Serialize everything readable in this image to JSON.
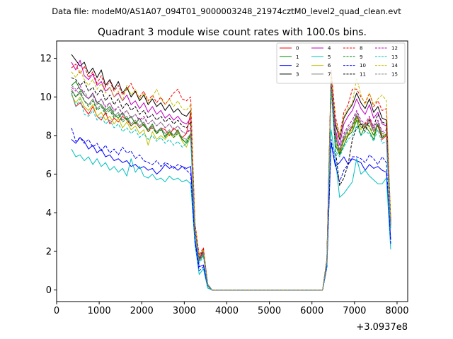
{
  "chart_data": {
    "type": "line",
    "suptitle": "Data file: modeM0/AS1A07_094T01_9000003248_21974cztM0_level2_quad_clean.evt",
    "title": "Quadrant 3 module wise count rates with 100.0s bins.",
    "xlabel": "",
    "ylabel": "",
    "x_offset_label": "+3.0937e8",
    "xlim": [
      0,
      8250
    ],
    "ylim": [
      -0.6,
      12.9
    ],
    "x_ticks": [
      0,
      1000,
      2000,
      3000,
      4000,
      5000,
      6000,
      7000,
      8000
    ],
    "x_tick_labels": [
      "0",
      "1000",
      "2000",
      "3000",
      "4000",
      "5000",
      "6000",
      "7000",
      "8000"
    ],
    "y_ticks": [
      0,
      2,
      4,
      6,
      8,
      10,
      12
    ],
    "y_tick_labels": [
      "0",
      "2",
      "4",
      "6",
      "8",
      "10",
      "12"
    ],
    "legend_position": "top-right",
    "x": [
      350,
      450,
      550,
      650,
      750,
      850,
      950,
      1050,
      1150,
      1250,
      1350,
      1450,
      1550,
      1650,
      1750,
      1850,
      1950,
      2050,
      2150,
      2250,
      2350,
      2450,
      2550,
      2650,
      2750,
      2850,
      2950,
      3050,
      3150,
      3250,
      3350,
      3450,
      3550,
      3650,
      3750,
      6250,
      6350,
      6450,
      6550,
      6650,
      6750,
      6850,
      6950,
      7050,
      7150,
      7250,
      7350,
      7450,
      7550,
      7650,
      7750,
      7850
    ],
    "series": [
      {
        "name": "0",
        "color": "#ff0000",
        "dash": false,
        "values": [
          10.2,
          9.5,
          9.7,
          9.4,
          9.1,
          9.5,
          9.0,
          8.8,
          9.2,
          8.6,
          8.9,
          8.7,
          9.0,
          8.8,
          8.5,
          8.7,
          8.4,
          8.6,
          8.2,
          8.5,
          8.1,
          8.4,
          8.3,
          8.0,
          8.4,
          8.2,
          7.9,
          8.1,
          9.2,
          3.2,
          1.6,
          2.0,
          0.3,
          0.0,
          0.0,
          0.0,
          1.5,
          11.0,
          8.2,
          7.0,
          7.8,
          8.0,
          8.5,
          9.0,
          8.6,
          8.4,
          8.9,
          8.2,
          8.5,
          7.8,
          8.0,
          3.3
        ]
      },
      {
        "name": "1",
        "color": "#008000",
        "dash": false,
        "values": [
          10.6,
          10.8,
          10.4,
          10.1,
          9.9,
          10.2,
          9.7,
          9.6,
          9.3,
          9.5,
          9.1,
          8.9,
          9.2,
          8.8,
          9.0,
          8.6,
          8.9,
          8.5,
          8.3,
          8.6,
          8.1,
          8.4,
          7.9,
          8.2,
          8.0,
          8.3,
          7.8,
          7.6,
          8.1,
          3.0,
          1.5,
          1.8,
          0.3,
          0.0,
          0.0,
          0.0,
          1.4,
          10.5,
          7.5,
          7.0,
          7.5,
          8.0,
          8.2,
          8.8,
          8.0,
          8.5,
          8.2,
          7.8,
          8.6,
          7.9,
          8.1,
          3.2
        ]
      },
      {
        "name": "2",
        "color": "#0000ff",
        "dash": false,
        "values": [
          7.8,
          7.6,
          7.9,
          7.7,
          7.3,
          7.5,
          7.1,
          7.3,
          6.9,
          7.0,
          6.7,
          6.8,
          6.6,
          6.7,
          6.4,
          6.5,
          6.3,
          6.4,
          6.2,
          6.3,
          6.0,
          6.2,
          6.5,
          6.3,
          6.4,
          6.2,
          6.4,
          6.3,
          6.4,
          2.6,
          1.2,
          1.3,
          0.2,
          0.0,
          0.0,
          0.0,
          1.2,
          7.6,
          6.4,
          6.6,
          6.9,
          6.5,
          6.8,
          6.7,
          6.6,
          6.2,
          6.5,
          6.3,
          6.4,
          6.2,
          6.1,
          2.6
        ]
      },
      {
        "name": "3",
        "color": "#000000",
        "dash": false,
        "values": [
          12.2,
          11.9,
          11.6,
          11.8,
          11.2,
          11.5,
          11.0,
          11.4,
          10.6,
          10.9,
          10.4,
          10.8,
          10.2,
          10.5,
          10.0,
          10.3,
          9.8,
          10.1,
          9.6,
          9.9,
          9.5,
          9.7,
          9.3,
          9.6,
          9.2,
          9.4,
          9.1,
          9.0,
          9.3,
          3.4,
          1.7,
          2.1,
          0.3,
          0.0,
          0.0,
          0.0,
          1.6,
          11.3,
          8.6,
          7.8,
          8.9,
          9.3,
          9.6,
          10.2,
          9.7,
          9.4,
          9.9,
          9.2,
          9.5,
          8.9,
          8.8,
          3.6
        ]
      },
      {
        "name": "4",
        "color": "#bf00bf",
        "dash": false,
        "values": [
          11.8,
          11.4,
          11.9,
          11.1,
          10.9,
          11.2,
          10.6,
          10.8,
          10.3,
          10.5,
          10.0,
          10.2,
          9.8,
          10.1,
          9.6,
          9.8,
          9.4,
          9.7,
          9.2,
          9.5,
          9.1,
          9.3,
          8.9,
          9.1,
          8.8,
          9.0,
          8.7,
          8.6,
          8.9,
          3.3,
          1.6,
          2.0,
          0.3,
          0.0,
          0.0,
          0.0,
          1.5,
          11.1,
          8.3,
          7.5,
          8.6,
          9.0,
          9.3,
          9.9,
          9.4,
          9.1,
          9.6,
          8.9,
          9.2,
          8.6,
          8.5,
          3.5
        ]
      },
      {
        "name": "5",
        "color": "#00bfbf",
        "dash": false,
        "values": [
          7.3,
          6.9,
          7.0,
          6.7,
          6.9,
          6.5,
          6.8,
          6.4,
          6.6,
          6.2,
          6.4,
          6.1,
          6.3,
          5.9,
          6.8,
          6.1,
          6.4,
          5.9,
          5.8,
          6.0,
          5.7,
          5.8,
          5.6,
          5.9,
          5.7,
          5.8,
          5.6,
          5.7,
          5.5,
          2.4,
          0.8,
          1.1,
          0.1,
          0.0,
          0.0,
          0.0,
          1.2,
          8.3,
          6.8,
          4.8,
          5.0,
          5.3,
          5.6,
          6.8,
          6.0,
          6.2,
          5.9,
          5.7,
          5.5,
          5.5,
          5.8,
          2.1
        ]
      },
      {
        "name": "6",
        "color": "#bfbf00",
        "dash": false,
        "values": [
          10.1,
          9.7,
          10.0,
          9.5,
          9.3,
          9.6,
          9.0,
          9.2,
          8.8,
          9.0,
          8.6,
          8.9,
          8.4,
          8.7,
          8.3,
          8.5,
          8.1,
          8.3,
          7.5,
          8.2,
          7.8,
          8.0,
          7.8,
          8.1,
          7.9,
          8.2,
          7.7,
          7.4,
          8.0,
          3.0,
          1.5,
          1.9,
          0.3,
          0.0,
          0.0,
          0.0,
          1.4,
          10.6,
          7.6,
          7.1,
          7.7,
          8.1,
          8.3,
          8.9,
          8.3,
          8.7,
          8.4,
          8.0,
          8.6,
          8.1,
          8.0,
          3.2
        ]
      },
      {
        "name": "7",
        "color": "#808080",
        "dash": false,
        "values": [
          10.4,
          10.0,
          10.2,
          9.8,
          9.6,
          9.9,
          9.4,
          9.6,
          9.2,
          9.4,
          9.0,
          9.2,
          8.8,
          9.0,
          8.6,
          8.8,
          8.5,
          8.7,
          8.3,
          8.5,
          8.2,
          8.4,
          8.1,
          8.3,
          8.0,
          8.2,
          7.9,
          7.8,
          8.1,
          3.1,
          1.5,
          1.9,
          0.3,
          0.0,
          0.0,
          0.0,
          1.4,
          10.8,
          7.9,
          7.2,
          7.9,
          8.3,
          8.5,
          9.1,
          8.6,
          8.5,
          8.7,
          8.2,
          8.6,
          8.0,
          8.0,
          3.3
        ]
      },
      {
        "name": "8",
        "color": "#ff0000",
        "dash": true,
        "values": [
          11.5,
          11.7,
          11.2,
          11.6,
          11.0,
          11.3,
          10.7,
          11.1,
          10.5,
          10.8,
          10.3,
          10.6,
          10.1,
          10.4,
          10.7,
          10.2,
          10.0,
          10.3,
          9.8,
          10.1,
          9.7,
          10.0,
          9.6,
          9.9,
          10.2,
          10.4,
          9.9,
          9.8,
          10.0,
          3.5,
          1.8,
          2.2,
          0.3,
          0.0,
          0.0,
          0.0,
          1.6,
          11.4,
          9.0,
          8.0,
          9.2,
          9.6,
          10.4,
          10.4,
          10.0,
          9.7,
          10.2,
          9.5,
          9.8,
          9.3,
          9.4,
          3.7
        ]
      },
      {
        "name": "9",
        "color": "#008000",
        "dash": true,
        "values": [
          10.3,
          10.0,
          10.3,
          9.8,
          9.5,
          9.8,
          9.3,
          9.5,
          9.1,
          9.3,
          8.9,
          9.1,
          8.7,
          8.9,
          8.5,
          8.7,
          8.4,
          8.6,
          8.2,
          8.4,
          8.1,
          8.3,
          8.0,
          8.2,
          7.9,
          8.1,
          7.8,
          7.7,
          8.0,
          3.1,
          1.5,
          1.9,
          0.3,
          0.0,
          0.0,
          0.0,
          1.4,
          10.7,
          7.8,
          7.1,
          7.8,
          8.2,
          8.4,
          9.0,
          8.4,
          8.6,
          8.5,
          8.0,
          8.6,
          7.9,
          8.0,
          3.2
        ]
      },
      {
        "name": "10",
        "color": "#0000ff",
        "dash": true,
        "values": [
          8.4,
          7.7,
          7.9,
          7.6,
          7.8,
          7.4,
          7.6,
          7.2,
          7.5,
          7.1,
          7.3,
          7.0,
          7.4,
          7.1,
          7.2,
          6.8,
          7.0,
          6.7,
          6.6,
          6.5,
          6.7,
          6.4,
          6.6,
          6.5,
          6.3,
          6.5,
          6.4,
          6.2,
          6.0,
          2.5,
          1.0,
          1.2,
          0.2,
          0.0,
          0.0,
          0.0,
          1.2,
          7.8,
          6.5,
          5.6,
          6.2,
          6.5,
          6.9,
          6.9,
          6.8,
          6.6,
          7.0,
          6.8,
          6.5,
          6.9,
          6.6,
          2.4
        ]
      },
      {
        "name": "11",
        "color": "#000000",
        "dash": true,
        "values": [
          11.0,
          10.9,
          10.6,
          10.8,
          10.3,
          10.5,
          10.1,
          10.4,
          9.8,
          10.1,
          9.6,
          9.9,
          9.4,
          9.7,
          9.3,
          9.5,
          9.1,
          9.3,
          8.9,
          9.1,
          8.8,
          9.0,
          8.7,
          8.9,
          8.6,
          8.8,
          8.5,
          8.4,
          8.7,
          3.2,
          1.6,
          2.0,
          0.3,
          0.0,
          0.0,
          0.0,
          1.5,
          10.9,
          7.3,
          5.4,
          5.8,
          6.5,
          7.8,
          8.4,
          8.6,
          8.2,
          8.8,
          8.5,
          9.1,
          8.7,
          8.6,
          3.4
        ]
      },
      {
        "name": "12",
        "color": "#bf00bf",
        "dash": true,
        "values": [
          10.5,
          10.3,
          10.6,
          10.1,
          9.9,
          10.2,
          9.7,
          9.9,
          9.5,
          9.7,
          9.3,
          9.5,
          9.1,
          9.3,
          8.9,
          9.1,
          8.8,
          9.0,
          8.6,
          8.8,
          8.5,
          8.7,
          8.4,
          8.6,
          8.3,
          8.5,
          8.2,
          8.1,
          8.4,
          3.2,
          1.6,
          2.0,
          0.3,
          0.0,
          0.0,
          0.0,
          1.5,
          10.9,
          8.0,
          7.3,
          8.1,
          8.5,
          8.8,
          9.3,
          8.8,
          8.6,
          9.0,
          8.4,
          8.8,
          8.2,
          8.3,
          3.4
        ]
      },
      {
        "name": "13",
        "color": "#00bfbf",
        "dash": true,
        "values": [
          10.2,
          9.5,
          9.9,
          9.1,
          9.0,
          9.3,
          8.8,
          9.0,
          8.6,
          8.8,
          8.4,
          8.6,
          8.2,
          8.4,
          8.1,
          8.3,
          7.9,
          8.1,
          7.8,
          8.0,
          7.7,
          7.9,
          7.6,
          7.8,
          7.5,
          7.7,
          7.4,
          7.6,
          7.8,
          2.9,
          1.4,
          1.7,
          0.2,
          0.0,
          0.0,
          0.0,
          1.4,
          10.3,
          7.2,
          6.9,
          7.4,
          7.8,
          8.0,
          8.5,
          8.0,
          8.2,
          8.1,
          7.7,
          8.3,
          7.6,
          7.7,
          3.1
        ]
      },
      {
        "name": "14",
        "color": "#bfbf00",
        "dash": true,
        "values": [
          11.3,
          11.0,
          11.4,
          10.9,
          10.6,
          10.9,
          10.4,
          10.7,
          10.2,
          10.5,
          10.0,
          10.3,
          9.8,
          10.6,
          10.1,
          10.4,
          9.9,
          10.2,
          9.7,
          10.0,
          10.4,
          9.9,
          9.6,
          9.9,
          9.5,
          9.8,
          9.4,
          9.3,
          9.6,
          3.4,
          1.7,
          2.1,
          0.3,
          0.0,
          0.0,
          0.0,
          1.6,
          11.2,
          8.8,
          7.9,
          9.0,
          9.4,
          9.7,
          11.0,
          10.1,
          9.6,
          10.2,
          9.6,
          9.9,
          10.1,
          9.8,
          3.7
        ]
      },
      {
        "name": "15",
        "color": "#808080",
        "dash": true,
        "values": [
          10.6,
          10.4,
          10.1,
          10.3,
          9.9,
          10.1,
          9.6,
          9.9,
          9.4,
          9.7,
          9.2,
          9.5,
          9.0,
          9.3,
          8.9,
          9.1,
          8.7,
          8.9,
          8.6,
          8.8,
          8.5,
          8.7,
          8.4,
          8.6,
          8.3,
          8.5,
          8.2,
          8.1,
          8.3,
          3.1,
          1.5,
          1.9,
          0.3,
          0.0,
          0.0,
          0.0,
          1.5,
          10.8,
          8.0,
          7.3,
          8.0,
          8.4,
          8.6,
          9.2,
          8.7,
          8.5,
          8.9,
          8.3,
          8.7,
          8.1,
          8.2,
          3.3
        ]
      }
    ]
  }
}
